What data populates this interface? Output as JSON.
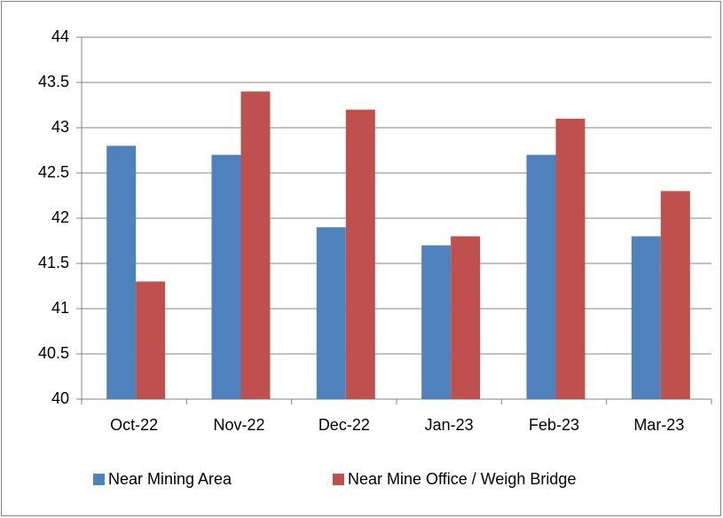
{
  "chart_data": {
    "type": "bar",
    "categories": [
      "Oct-22",
      "Nov-22",
      "Dec-22",
      "Jan-23",
      "Feb-23",
      "Mar-23"
    ],
    "series": [
      {
        "name": "Near Mining Area",
        "color": "#4f81bd",
        "values": [
          42.8,
          42.7,
          41.9,
          41.7,
          42.7,
          41.8
        ]
      },
      {
        "name": "Near Mine Office / Weigh Bridge",
        "color": "#c0504d",
        "values": [
          41.3,
          43.4,
          43.2,
          41.8,
          43.1,
          42.3
        ]
      }
    ],
    "ylim": [
      40,
      44
    ],
    "yticks": [
      40,
      40.5,
      41,
      41.5,
      42,
      42.5,
      43,
      43.5,
      44
    ],
    "grid": true,
    "legend": "bottom"
  }
}
